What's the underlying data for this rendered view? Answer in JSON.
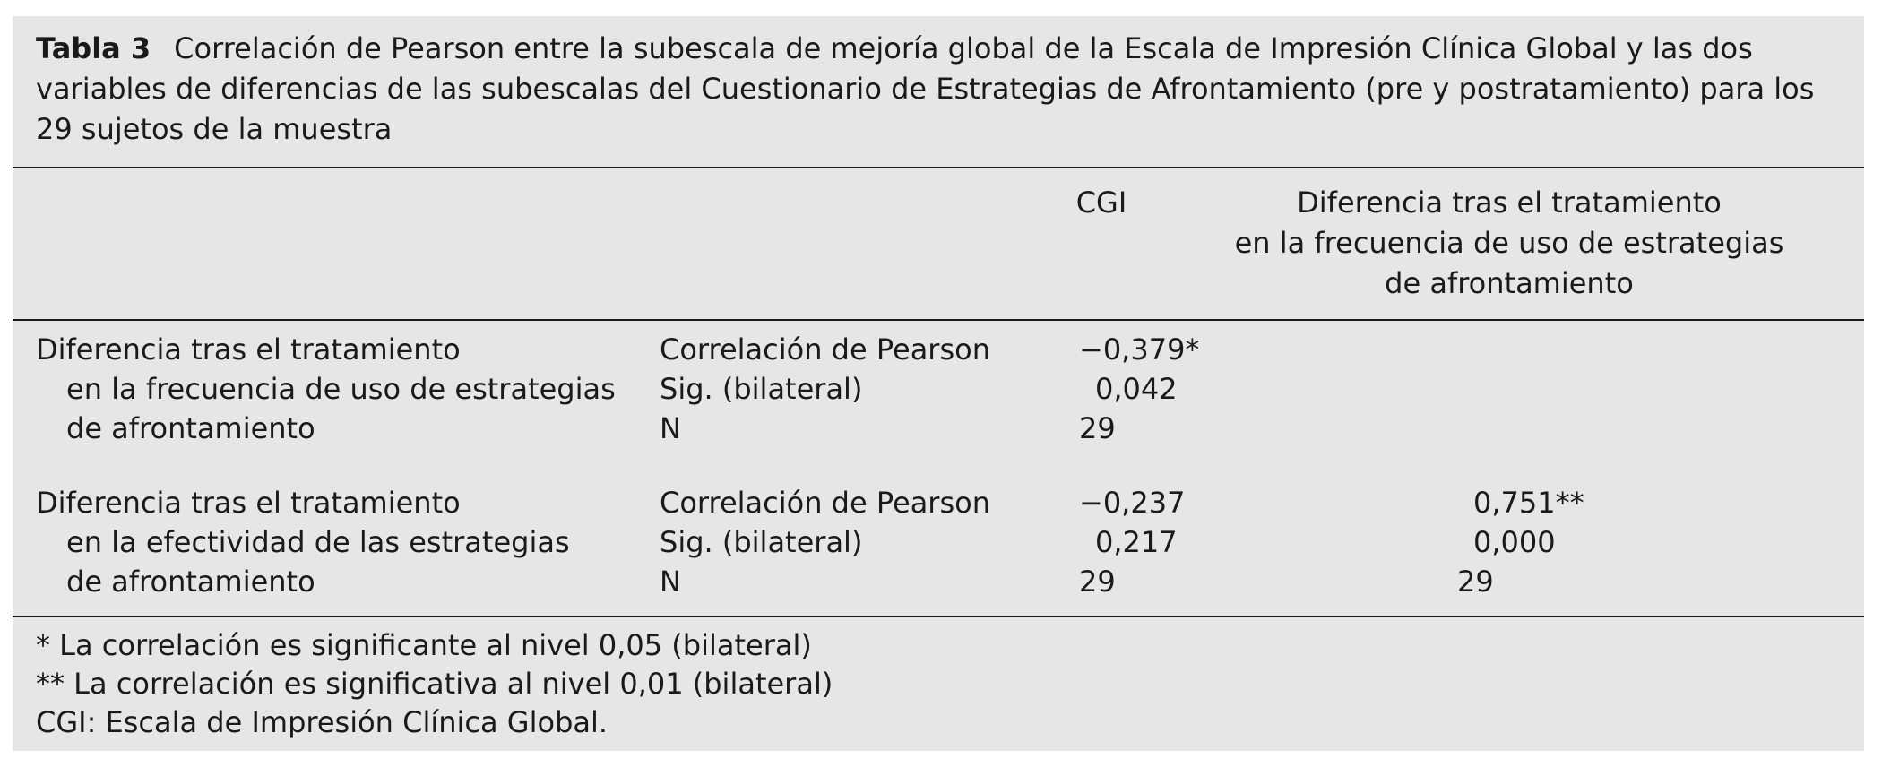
{
  "caption": {
    "label": "Tabla 3",
    "text": "Correlación de Pearson entre la subescala de mejoría global de la Escala de Impresión Clínica Global y las dos variables de diferencias de las subescalas del Cuestionario de Estrategias de Afrontamiento (pre y postratamiento) para los 29 sujetos de la muestra"
  },
  "header": {
    "cgi": "CGI",
    "diff_lines": [
      "Diferencia tras el tratamiento",
      "en la frecuencia de uso de estrategias",
      "de afrontamiento"
    ]
  },
  "rows": [
    {
      "label_lines": [
        "Diferencia tras el tratamiento",
        "en la frecuencia de uso de estrategias",
        "de afrontamiento"
      ],
      "stats": [
        "Correlación de Pearson",
        "Sig. (bilateral)",
        "N"
      ],
      "cgi": [
        "−0,379*",
        "0,042",
        "29"
      ],
      "diff": [
        "",
        "",
        ""
      ]
    },
    {
      "label_lines": [
        "Diferencia tras el tratamiento",
        "en la efectividad de las estrategias",
        "de afrontamiento"
      ],
      "stats": [
        "Correlación de Pearson",
        "Sig. (bilateral)",
        "N"
      ],
      "cgi": [
        "−0,237",
        "0,217",
        "29"
      ],
      "diff": [
        "0,751**",
        "0,000",
        "29"
      ]
    }
  ],
  "notes": [
    "* La correlación es significante al nivel 0,05 (bilateral)",
    "** La correlación es significativa al nivel 0,01 (bilateral)",
    "CGI: Escala de Impresión Clínica Global."
  ]
}
